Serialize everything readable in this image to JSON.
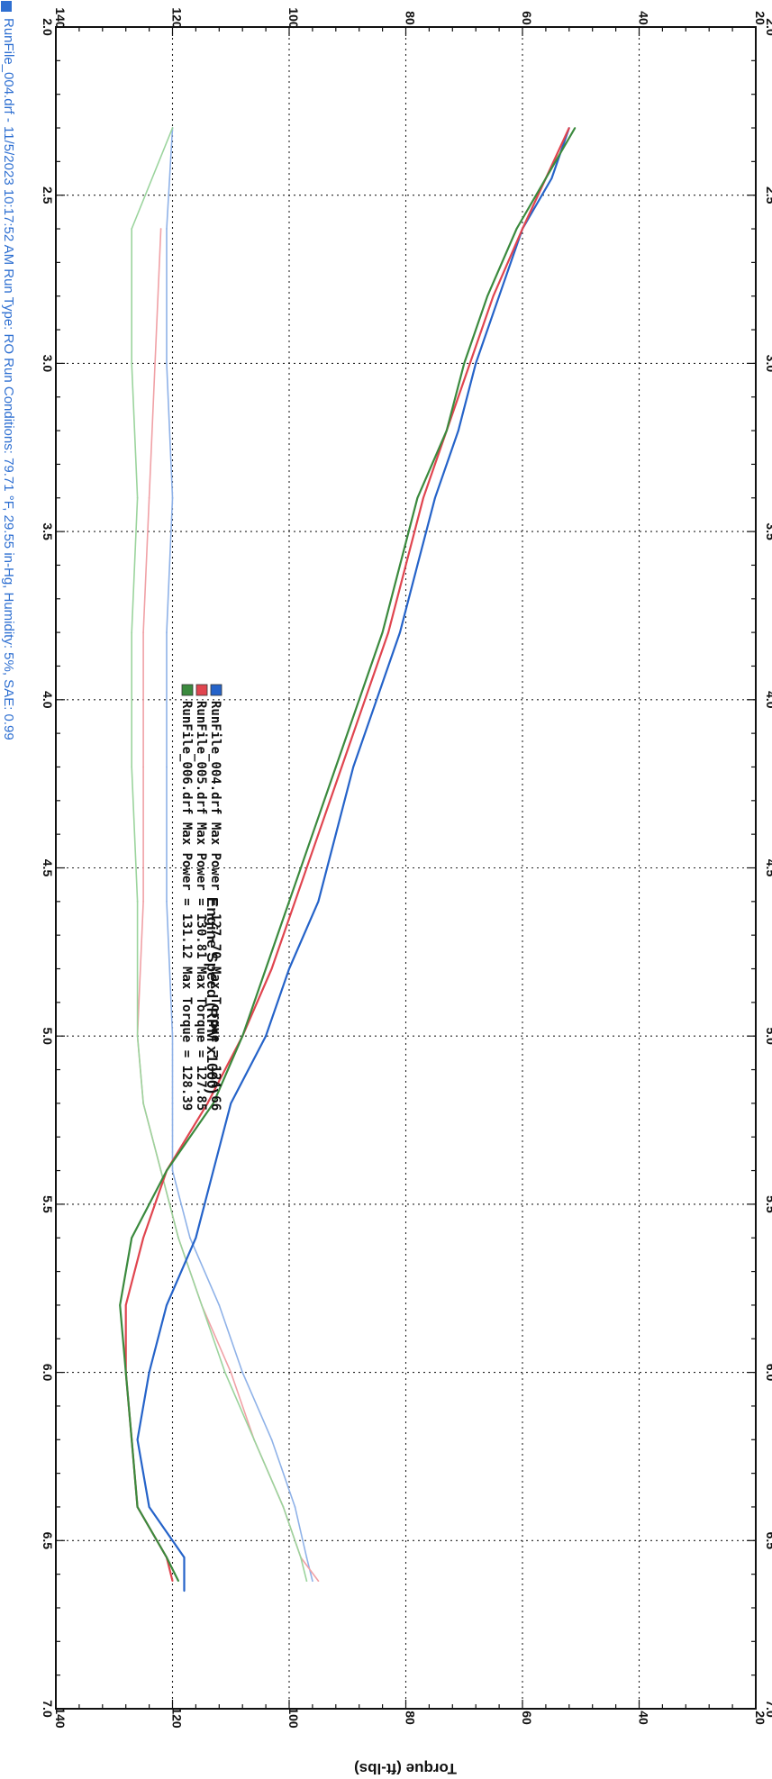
{
  "chart_data": {
    "type": "line",
    "xlabel": "Engine Speed (RPM x1000)",
    "ylabel": "Torque (ft-lbs)",
    "xlim": [
      2.0,
      7.0
    ],
    "ylim": [
      20,
      140
    ],
    "x_ticks": [
      "2.0",
      "2.5",
      "3.0",
      "3.5",
      "4.0",
      "4.5",
      "5.0",
      "5.5",
      "6.0",
      "6.5",
      "7.0"
    ],
    "y_ticks": [
      "20",
      "40",
      "60",
      "80",
      "100",
      "120",
      "140"
    ],
    "grid": true,
    "legend_position": "upper-left",
    "legend": [
      {
        "label": "RunFile_004.drf Max Power = 127.70    Max Torque = 124.66",
        "color": "#2563c9"
      },
      {
        "label": "RunFile_005.drf Max Power = 130.81    Max Torque = 127.85",
        "color": "#e0454f"
      },
      {
        "label": "RunFile_006.drf Max Power = 131.12    Max Torque = 128.39",
        "color": "#3b8a3e"
      }
    ],
    "series": [
      {
        "name": "RunFile_004.drf Max Power",
        "color": "#2563c9",
        "x": [
          2.3,
          2.45,
          2.6,
          2.8,
          3.0,
          3.2,
          3.4,
          3.6,
          3.8,
          4.0,
          4.2,
          4.4,
          4.6,
          4.8,
          5.0,
          5.2,
          5.4,
          5.6,
          5.8,
          6.0,
          6.2,
          6.4,
          6.55,
          6.65
        ],
        "values": [
          52,
          55,
          60,
          64,
          68,
          71,
          75,
          78,
          81,
          85,
          89,
          92,
          95,
          100,
          104,
          110,
          113,
          116,
          121,
          124,
          126,
          124,
          118,
          118
        ]
      },
      {
        "name": "RunFile_005.drf Max Power",
        "color": "#e0454f",
        "x": [
          2.3,
          2.45,
          2.6,
          2.8,
          3.0,
          3.2,
          3.4,
          3.6,
          3.8,
          4.0,
          4.2,
          4.4,
          4.6,
          4.8,
          5.0,
          5.2,
          5.4,
          5.6,
          5.8,
          6.0,
          6.2,
          6.4,
          6.55,
          6.62
        ],
        "values": [
          52,
          56,
          60,
          65,
          69,
          73,
          77,
          80,
          83,
          87,
          91,
          95,
          99,
          103,
          108,
          114,
          121,
          125,
          128,
          128,
          127,
          126,
          121,
          120
        ]
      },
      {
        "name": "RunFile_006.drf Max Power",
        "color": "#3b8a3e",
        "x": [
          2.3,
          2.45,
          2.6,
          2.8,
          3.0,
          3.2,
          3.4,
          3.6,
          3.8,
          4.0,
          4.2,
          4.4,
          4.6,
          4.8,
          5.0,
          5.2,
          5.4,
          5.6,
          5.8,
          6.0,
          6.2,
          6.4,
          6.55,
          6.62
        ],
        "values": [
          51,
          56,
          61,
          66,
          70,
          73,
          78,
          81,
          84,
          88,
          92,
          96,
          100,
          104,
          108,
          113,
          121,
          127,
          129,
          128,
          127,
          126,
          121,
          119
        ]
      },
      {
        "name": "RunFile_004.drf Torque",
        "color": "#8fb2e8",
        "x": [
          2.3,
          2.6,
          3.0,
          3.4,
          3.8,
          4.2,
          4.6,
          5.0,
          5.2,
          5.4,
          5.6,
          5.8,
          6.0,
          6.2,
          6.4,
          6.55,
          6.62
        ],
        "values": [
          120,
          121,
          121,
          120,
          121,
          121,
          121,
          120,
          120,
          120,
          117,
          112,
          108,
          103,
          99,
          97,
          96
        ]
      },
      {
        "name": "RunFile_005.drf Torque",
        "color": "#f0a1a6",
        "x": [
          2.6,
          3.0,
          3.4,
          3.8,
          4.2,
          4.6,
          5.0,
          5.2,
          5.4,
          5.6,
          5.8,
          6.0,
          6.2,
          6.4,
          6.55,
          6.62
        ],
        "values": [
          122,
          123,
          124,
          125,
          125,
          125,
          126,
          125,
          122,
          119,
          115,
          110,
          106,
          101,
          98,
          95
        ]
      },
      {
        "name": "RunFile_006.drf Torque",
        "color": "#9bd49d",
        "x": [
          2.3,
          2.6,
          3.0,
          3.4,
          3.8,
          4.2,
          4.6,
          5.0,
          5.2,
          5.4,
          5.6,
          5.8,
          6.0,
          6.2,
          6.4,
          6.55,
          6.62
        ],
        "values": [
          120,
          127,
          127,
          126,
          127,
          127,
          126,
          126,
          125,
          122,
          119,
          115,
          111,
          106,
          101,
          98,
          97
        ]
      }
    ]
  },
  "footer": "RunFile_004.drf - 11/5/2023 10:17:52 AM  Run Type: RO  Run Conditions: 79.71 °F, 29.55 in-Hg, Humidity: 5%, SAE: 0.99"
}
